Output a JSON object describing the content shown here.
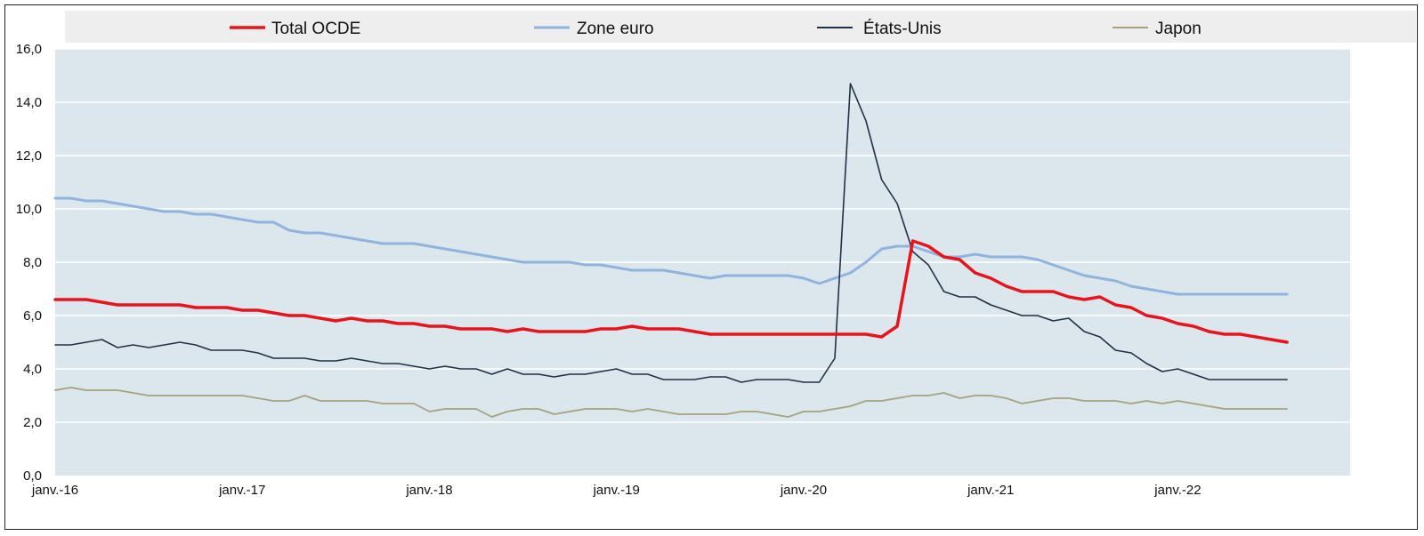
{
  "chart_data": {
    "type": "line",
    "title": "",
    "xlabel": "",
    "ylabel": "",
    "ylim": [
      0,
      16
    ],
    "y_ticks": [
      "0,0",
      "2,0",
      "4,0",
      "6,0",
      "8,0",
      "10,0",
      "12,0",
      "14,0",
      "16,0"
    ],
    "x_ticks": [
      "janv.-16",
      "janv.-17",
      "janv.-18",
      "janv.-19",
      "janv.-20",
      "janv.-21",
      "janv.-22"
    ],
    "x_start": "2016-01",
    "x_end": "2022-12",
    "grid": true,
    "legend_position": "top",
    "background_color": "#dce6ed",
    "series": [
      {
        "name": "Total OCDE",
        "color": "#e8141c",
        "width": 3.5,
        "values": [
          6.6,
          6.6,
          6.6,
          6.5,
          6.4,
          6.4,
          6.4,
          6.4,
          6.4,
          6.3,
          6.3,
          6.3,
          6.2,
          6.2,
          6.1,
          6.0,
          6.0,
          5.9,
          5.8,
          5.9,
          5.8,
          5.8,
          5.7,
          5.7,
          5.6,
          5.6,
          5.5,
          5.5,
          5.5,
          5.4,
          5.5,
          5.4,
          5.4,
          5.4,
          5.4,
          5.5,
          5.5,
          5.6,
          5.5,
          5.5,
          5.5,
          5.4,
          5.3,
          5.3,
          5.3,
          5.3,
          5.3,
          5.3,
          5.3,
          5.3,
          5.3,
          5.3,
          5.3,
          5.2,
          5.6,
          8.8,
          8.6,
          8.2,
          8.1,
          7.6,
          7.4,
          7.1,
          6.9,
          6.9,
          6.9,
          6.7,
          6.6,
          6.7,
          6.4,
          6.3,
          6.0,
          5.9,
          5.7,
          5.6,
          5.4,
          5.3,
          5.3,
          5.2,
          5.1,
          5.0
        ]
      },
      {
        "name": "Zone euro",
        "color": "#8fb4df",
        "width": 3,
        "values": [
          10.4,
          10.4,
          10.3,
          10.3,
          10.2,
          10.1,
          10.0,
          9.9,
          9.9,
          9.8,
          9.8,
          9.7,
          9.6,
          9.5,
          9.5,
          9.2,
          9.1,
          9.1,
          9.0,
          8.9,
          8.8,
          8.7,
          8.7,
          8.7,
          8.6,
          8.5,
          8.4,
          8.3,
          8.2,
          8.1,
          8.0,
          8.0,
          8.0,
          8.0,
          7.9,
          7.9,
          7.8,
          7.7,
          7.7,
          7.7,
          7.6,
          7.5,
          7.4,
          7.5,
          7.5,
          7.5,
          7.5,
          7.5,
          7.4,
          7.2,
          7.4,
          7.6,
          8.0,
          8.5,
          8.6,
          8.6,
          8.4,
          8.2,
          8.2,
          8.3,
          8.2,
          8.2,
          8.2,
          8.1,
          7.9,
          7.7,
          7.5,
          7.4,
          7.3,
          7.1,
          7.0,
          6.9,
          6.8,
          6.8,
          6.8,
          6.8,
          6.8,
          6.8,
          6.8,
          6.8
        ]
      },
      {
        "name": "États-Unis",
        "color": "#1f3147",
        "width": 1.6,
        "values": [
          4.9,
          4.9,
          5.0,
          5.1,
          4.8,
          4.9,
          4.8,
          4.9,
          5.0,
          4.9,
          4.7,
          4.7,
          4.7,
          4.6,
          4.4,
          4.4,
          4.4,
          4.3,
          4.3,
          4.4,
          4.3,
          4.2,
          4.2,
          4.1,
          4.0,
          4.1,
          4.0,
          4.0,
          3.8,
          4.0,
          3.8,
          3.8,
          3.7,
          3.8,
          3.8,
          3.9,
          4.0,
          3.8,
          3.8,
          3.6,
          3.6,
          3.6,
          3.7,
          3.7,
          3.5,
          3.6,
          3.6,
          3.6,
          3.5,
          3.5,
          4.4,
          14.7,
          13.3,
          11.1,
          10.2,
          8.4,
          7.9,
          6.9,
          6.7,
          6.7,
          6.4,
          6.2,
          6.0,
          6.0,
          5.8,
          5.9,
          5.4,
          5.2,
          4.7,
          4.6,
          4.2,
          3.9,
          4.0,
          3.8,
          3.6,
          3.6,
          3.6,
          3.6,
          3.6,
          3.6
        ]
      },
      {
        "name": "Japon",
        "color": "#a8a27a",
        "width": 1.8,
        "values": [
          3.2,
          3.3,
          3.2,
          3.2,
          3.2,
          3.1,
          3.0,
          3.0,
          3.0,
          3.0,
          3.0,
          3.0,
          3.0,
          2.9,
          2.8,
          2.8,
          3.0,
          2.8,
          2.8,
          2.8,
          2.8,
          2.7,
          2.7,
          2.7,
          2.4,
          2.5,
          2.5,
          2.5,
          2.2,
          2.4,
          2.5,
          2.5,
          2.3,
          2.4,
          2.5,
          2.5,
          2.5,
          2.4,
          2.5,
          2.4,
          2.3,
          2.3,
          2.3,
          2.3,
          2.4,
          2.4,
          2.3,
          2.2,
          2.4,
          2.4,
          2.5,
          2.6,
          2.8,
          2.8,
          2.9,
          3.0,
          3.0,
          3.1,
          2.9,
          3.0,
          3.0,
          2.9,
          2.7,
          2.8,
          2.9,
          2.9,
          2.8,
          2.8,
          2.8,
          2.7,
          2.8,
          2.7,
          2.8,
          2.7,
          2.6,
          2.5,
          2.5,
          2.5,
          2.5,
          2.5
        ]
      }
    ]
  }
}
